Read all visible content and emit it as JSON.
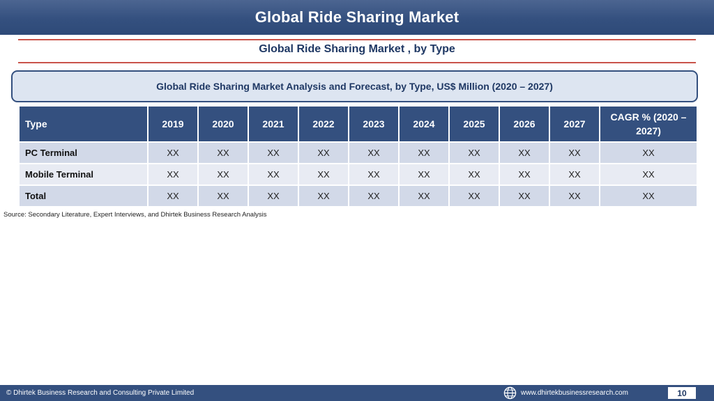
{
  "header": {
    "title": "Global Ride Sharing Market"
  },
  "subtitle": "Global Ride Sharing Market , by Type",
  "banner": "Global Ride Sharing Market  Analysis and Forecast, by Type, US$ Million (2020 – 2027)",
  "table": {
    "columns": [
      "Type",
      "2019",
      "2020",
      "2021",
      "2022",
      "2023",
      "2024",
      "2025",
      "2026",
      "2027",
      "CAGR % (2020 – 2027)"
    ],
    "rows": [
      {
        "label": "PC Terminal",
        "values": [
          "XX",
          "XX",
          "XX",
          "XX",
          "XX",
          "XX",
          "XX",
          "XX",
          "XX",
          "XX"
        ]
      },
      {
        "label": "Mobile Terminal",
        "values": [
          "XX",
          "XX",
          "XX",
          "XX",
          "XX",
          "XX",
          "XX",
          "XX",
          "XX",
          "XX"
        ]
      },
      {
        "label": "Total",
        "values": [
          "XX",
          "XX",
          "XX",
          "XX",
          "XX",
          "XX",
          "XX",
          "XX",
          "XX",
          "XX"
        ]
      }
    ]
  },
  "source": "Source: Secondary Literature, Expert Interviews, and Dhirtek Business Research Analysis",
  "footer": {
    "copyright": "© Dhirtek Business Research and Consulting Private Limited",
    "website": "www.dhirtekbusinessresearch.com",
    "page": "10",
    "icon": "globe-icon"
  },
  "colors": {
    "header_bg": "#34507f",
    "accent_rule": "#c9534a",
    "title_text": "#1f3864",
    "banner_bg": "#dde5f1",
    "row_odd": "#d2d9e8",
    "row_even": "#e8ebf3"
  }
}
